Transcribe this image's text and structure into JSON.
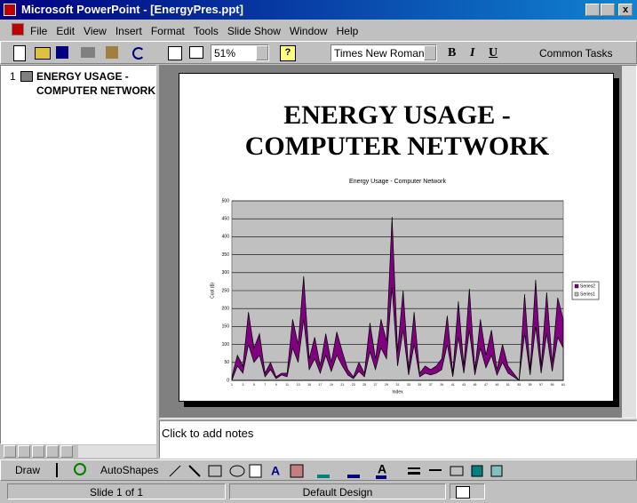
{
  "window": {
    "title": "Microsoft PowerPoint - [EnergyPres.ppt]"
  },
  "menu": [
    "File",
    "Edit",
    "View",
    "Insert",
    "Format",
    "Tools",
    "Slide Show",
    "Window",
    "Help"
  ],
  "toolbar": {
    "zoom": "51%",
    "font": "Times New Roman",
    "bold": "B",
    "italic": "I",
    "underline": "U",
    "tasks": "Common Tasks"
  },
  "outline": {
    "number": "1",
    "title_line1": "ENERGY USAGE -",
    "title_line2": "COMPUTER NETWORK"
  },
  "slide": {
    "title_line1": "ENERGY USAGE -",
    "title_line2": "COMPUTER NETWORK"
  },
  "notes": "Click to add notes",
  "drawing_toolbar": {
    "draw": "Draw",
    "autoshapes": "AutoShapes"
  },
  "status": {
    "slide": "Slide 1 of 1",
    "design": "Default Design"
  },
  "chart_data": {
    "type": "area",
    "title": "Energy Usage - Computer Network",
    "y_label": "Cost ($)",
    "x_label": "Index",
    "categories": [
      "1",
      null,
      "3",
      null,
      "5",
      null,
      "7",
      null,
      "9",
      null,
      "11",
      null,
      "13",
      null,
      "15",
      null,
      "17",
      null,
      "19",
      null,
      "21",
      null,
      "23",
      null,
      "25",
      null,
      "27",
      null,
      "29",
      null,
      "31",
      null,
      "33",
      null,
      "35",
      null,
      "37",
      null,
      "39",
      null,
      "41",
      null,
      "43",
      null,
      "45",
      null,
      "47",
      null,
      "49",
      null,
      "51",
      null,
      "53",
      null,
      "55",
      null,
      "57",
      null,
      "59",
      null,
      "61"
    ],
    "series": [
      {
        "name": "Series2",
        "color": "#800080",
        "values": [
          10,
          70,
          40,
          190,
          90,
          130,
          20,
          50,
          10,
          20,
          20,
          170,
          100,
          290,
          60,
          120,
          40,
          130,
          50,
          135,
          80,
          30,
          10,
          50,
          20,
          160,
          60,
          170,
          110,
          455,
          80,
          250,
          30,
          190,
          20,
          40,
          30,
          40,
          60,
          180,
          20,
          220,
          40,
          255,
          30,
          170,
          70,
          140,
          30,
          100,
          40,
          20,
          0,
          240,
          30,
          280,
          40,
          245,
          50,
          230,
          170
        ]
      },
      {
        "name": "Series1",
        "color": "#c0c0c0",
        "values": [
          0,
          40,
          20,
          100,
          50,
          70,
          10,
          30,
          5,
          15,
          10,
          90,
          50,
          170,
          30,
          60,
          20,
          70,
          25,
          70,
          40,
          15,
          5,
          25,
          10,
          80,
          30,
          90,
          60,
          260,
          40,
          140,
          15,
          100,
          10,
          20,
          15,
          20,
          30,
          100,
          10,
          120,
          20,
          140,
          15,
          90,
          35,
          70,
          15,
          50,
          20,
          10,
          0,
          130,
          15,
          150,
          20,
          130,
          25,
          120,
          90
        ]
      }
    ],
    "ylim": [
      0,
      500
    ],
    "yticks": [
      0,
      50,
      100,
      150,
      200,
      250,
      300,
      350,
      400,
      450,
      500
    ],
    "grid": true,
    "plot_background": "#c0c0c0",
    "legend": "right"
  }
}
